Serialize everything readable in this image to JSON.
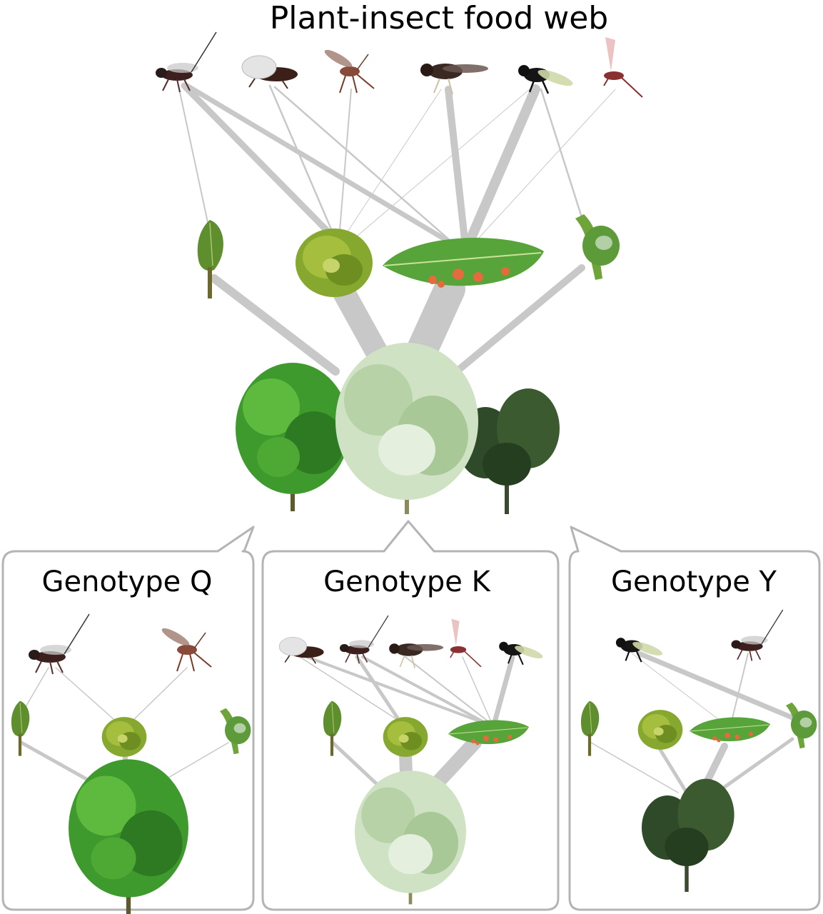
{
  "title": "Plant-insect food web",
  "panels": [
    {
      "label": "Genotype Q"
    },
    {
      "label": "Genotype K"
    },
    {
      "label": "Genotype Y"
    }
  ],
  "colors": {
    "link": "#c8c8c8",
    "panel_border": "#b4b4b4",
    "leaf": "#6fae3c",
    "gall": "#e36b3d",
    "insect": "#4a2a22"
  },
  "icons": {
    "insects": [
      "wasp-icon",
      "winged-bug-icon",
      "long-wasp-icon",
      "sawfly-icon",
      "black-fly-icon",
      "pink-wasp-icon"
    ],
    "galls": [
      "bud-gall-icon",
      "rosette-gall-icon",
      "leaf-gall-icon",
      "stem-gall-icon"
    ],
    "plants": [
      "shrub-q-icon",
      "shrub-k-icon",
      "shrub-y-icon"
    ]
  }
}
